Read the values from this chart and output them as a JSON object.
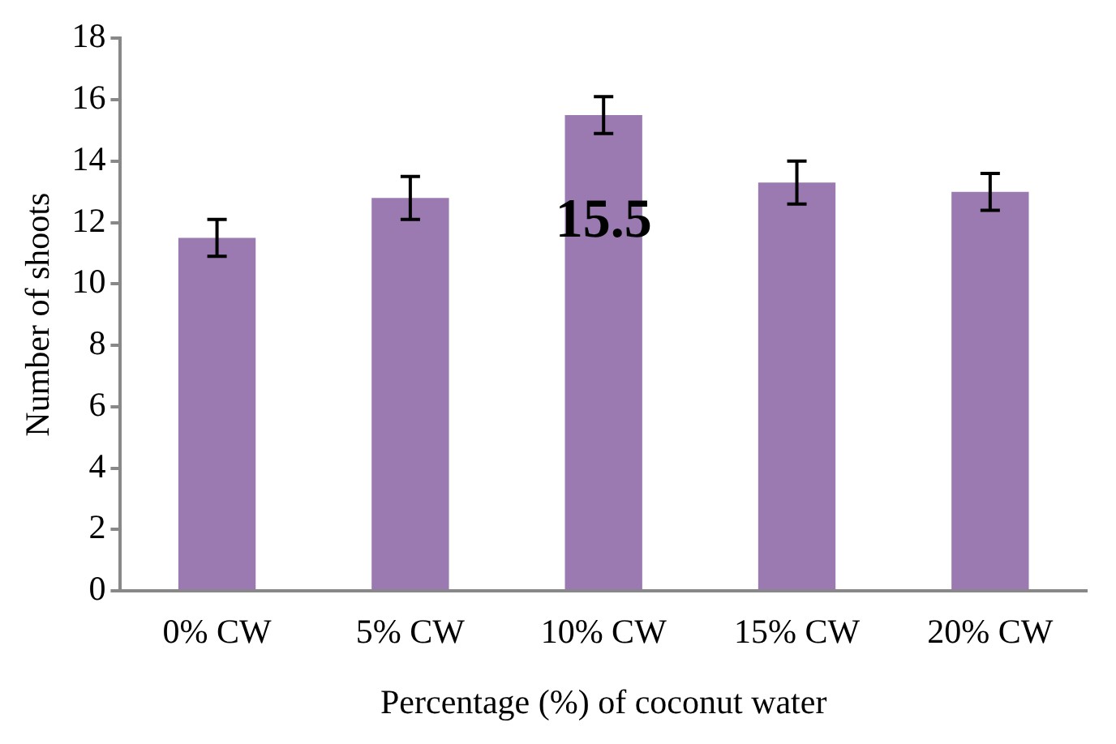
{
  "chart_data": {
    "type": "bar",
    "xlabel": "Percentage (%) of coconut water",
    "ylabel": "Number of shoots",
    "categories": [
      "0% CW",
      "5% CW",
      "10% CW",
      "15% CW",
      "20% CW"
    ],
    "values": [
      11.5,
      12.8,
      15.5,
      13.3,
      13.0
    ],
    "errors": [
      0.6,
      0.7,
      0.6,
      0.7,
      0.6
    ],
    "value_labels": [
      null,
      null,
      "15.5",
      null,
      null
    ],
    "color": "#9a7ab0",
    "ylim": [
      0,
      18
    ],
    "yticks": [
      0,
      2,
      4,
      6,
      8,
      10,
      12,
      14,
      16,
      18
    ],
    "grid": false,
    "legend": false
  }
}
